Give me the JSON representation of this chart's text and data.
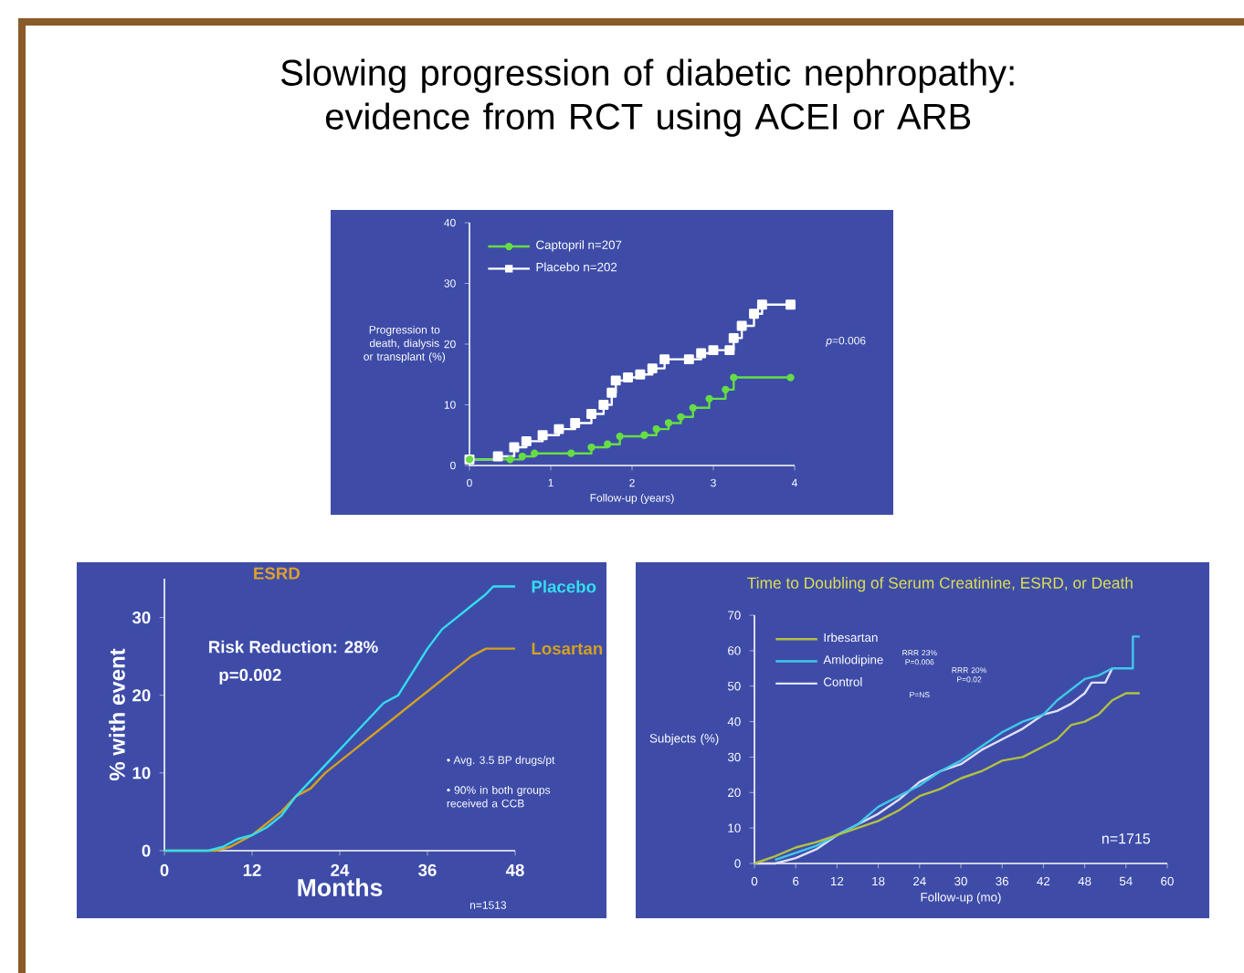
{
  "chart_data": [
    {
      "type": "step",
      "title": "Slowing progression of diabetic nephropathy: evidence from RCT using ACEI or ARB",
      "xlabel": "Follow-up (years)",
      "ylabel": "Progression to death, dialysis or transplant (%)",
      "xlim": [
        0,
        4
      ],
      "ylim": [
        0,
        40
      ],
      "xticks": [
        0,
        1,
        2,
        3,
        4
      ],
      "yticks": [
        0,
        10,
        20,
        30,
        40
      ],
      "legend": "top left",
      "annotations": [
        "*p*=0.006"
      ],
      "series": [
        {
          "name": "Captopril   n=207",
          "color": "#66dd44",
          "marker": "circle",
          "x": [
            0,
            0.5,
            0.65,
            0.8,
            1.25,
            1.5,
            1.7,
            1.85,
            2.15,
            2.3,
            2.45,
            2.6,
            2.75,
            2.95,
            3.15,
            3.25,
            3.95
          ],
          "values": [
            1,
            1,
            1.5,
            2,
            2,
            3,
            3.5,
            4.8,
            5,
            6,
            7,
            8,
            9.5,
            11,
            12.5,
            14.5,
            14.5
          ]
        },
        {
          "name": "Placebo   n=202",
          "color": "#ffffff",
          "marker": "square",
          "x": [
            0,
            0.35,
            0.55,
            0.7,
            0.9,
            1.1,
            1.3,
            1.5,
            1.65,
            1.75,
            1.8,
            1.95,
            2.1,
            2.25,
            2.4,
            2.7,
            2.85,
            3.0,
            3.2,
            3.25,
            3.35,
            3.5,
            3.6,
            3.95
          ],
          "values": [
            1,
            1.5,
            3,
            4,
            5,
            6,
            7,
            8.5,
            10,
            12,
            14,
            14.5,
            15,
            16,
            17.5,
            17.5,
            18.5,
            19,
            19,
            21,
            23,
            25,
            26.5,
            26.5
          ]
        }
      ]
    },
    {
      "type": "line",
      "title": "ESRD",
      "xlabel": "Months",
      "ylabel": "% with event",
      "xlim": [
        0,
        48
      ],
      "ylim": [
        0,
        35
      ],
      "xticks": [
        0,
        12,
        24,
        36,
        48
      ],
      "yticks": [
        0,
        10,
        20,
        30
      ],
      "annotations": [
        "Risk Reduction:  28%",
        "p=0.002",
        "• Avg. 3.5 BP drugs/pt",
        "• 90% in both groups received a CCB",
        "n=1513"
      ],
      "series": [
        {
          "name": "Placebo",
          "color": "#33ddee",
          "x": [
            0,
            6,
            8,
            10,
            12,
            14,
            16,
            18,
            20,
            22,
            24,
            26,
            28,
            30,
            32,
            34,
            36,
            38,
            40,
            42,
            44,
            45,
            48
          ],
          "values": [
            0,
            0,
            0.5,
            1.5,
            2,
            3,
            4.5,
            7,
            9,
            11,
            13,
            15,
            17,
            19,
            20,
            23,
            26,
            28.5,
            30,
            31.5,
            33,
            34,
            34
          ]
        },
        {
          "name": "Losartan",
          "color": "#d4a020",
          "x": [
            0,
            7,
            9,
            12,
            14,
            16,
            18,
            20,
            22,
            24,
            26,
            28,
            30,
            32,
            34,
            36,
            38,
            40,
            42,
            44,
            48
          ],
          "values": [
            0,
            0,
            0.5,
            2,
            3.5,
            5,
            7,
            8,
            10,
            11.5,
            13,
            14.5,
            16,
            17.5,
            19,
            20.5,
            22,
            23.5,
            25,
            26,
            26
          ]
        }
      ]
    },
    {
      "type": "line",
      "title": "Time to Doubling of Serum Creatinine, ESRD, or Death",
      "xlabel": "Follow-up (mo)",
      "ylabel": "Subjects (%)",
      "xlim": [
        0,
        60
      ],
      "ylim": [
        0,
        70
      ],
      "xticks": [
        0,
        6,
        12,
        18,
        24,
        30,
        36,
        42,
        48,
        54,
        60
      ],
      "yticks": [
        0,
        10,
        20,
        30,
        40,
        50,
        60,
        70
      ],
      "legend": "top left",
      "annotations": [
        "RRR 23% P=0.006",
        "RRR 20% P=0.02",
        "P=NS",
        "n=1715"
      ],
      "series": [
        {
          "name": "Irbesartan",
          "color": "#b5c040",
          "x": [
            0,
            3,
            6,
            9,
            12,
            15,
            18,
            21,
            24,
            27,
            30,
            33,
            36,
            39,
            42,
            44,
            46,
            48,
            50,
            52,
            54,
            56
          ],
          "values": [
            0,
            2,
            4.5,
            6,
            8,
            10,
            12,
            15,
            19,
            21,
            24,
            26,
            29,
            30,
            33,
            35,
            39,
            40,
            42,
            46,
            48,
            48
          ]
        },
        {
          "name": "Amlodipine",
          "color": "#40c8e8",
          "x": [
            3,
            6,
            9,
            12,
            15,
            18,
            21,
            24,
            27,
            30,
            33,
            36,
            39,
            42,
            44,
            46,
            48,
            50,
            52,
            55,
            55,
            56
          ],
          "values": [
            1,
            3,
            5,
            8,
            11,
            16,
            19,
            22,
            26,
            29,
            33,
            37,
            40,
            42,
            46,
            49,
            52,
            53,
            55,
            55,
            64,
            64
          ]
        },
        {
          "name": "Control",
          "color": "#e0e0f8",
          "x": [
            0,
            3,
            6,
            9,
            12,
            15,
            18,
            21,
            24,
            27,
            30,
            33,
            36,
            39,
            42,
            44,
            46,
            48,
            49,
            51,
            52
          ],
          "values": [
            0,
            0,
            1.5,
            4,
            8,
            11,
            14,
            18,
            23,
            26,
            28,
            32,
            35,
            38,
            42,
            43,
            45,
            48,
            51,
            51,
            55
          ]
        }
      ]
    }
  ]
}
